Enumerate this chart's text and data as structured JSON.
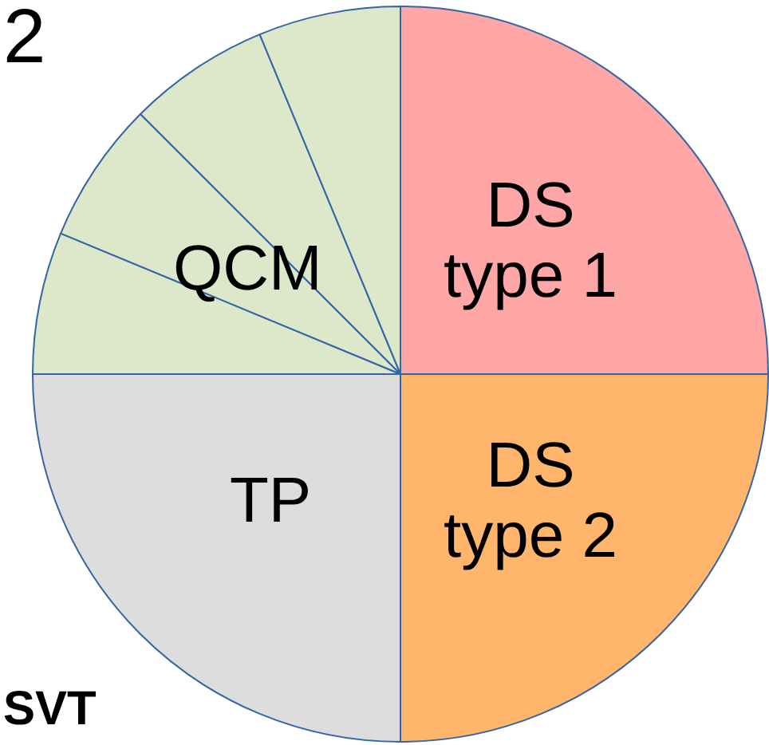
{
  "chart_data": {
    "type": "pie",
    "categories": [
      "DS type 1",
      "DS type 2",
      "TP",
      null,
      "QCM",
      null,
      null
    ],
    "values": [
      25,
      25,
      25,
      6.25,
      6.25,
      6.25,
      6.25
    ],
    "colors": [
      "#ffa6a6",
      "#ffb66c",
      "#dddddd",
      "#dde8cb",
      "#dde8cb",
      "#dde8cb",
      "#dde8cb"
    ],
    "annotations": [
      "2",
      "SVT"
    ],
    "legend": false
  }
}
